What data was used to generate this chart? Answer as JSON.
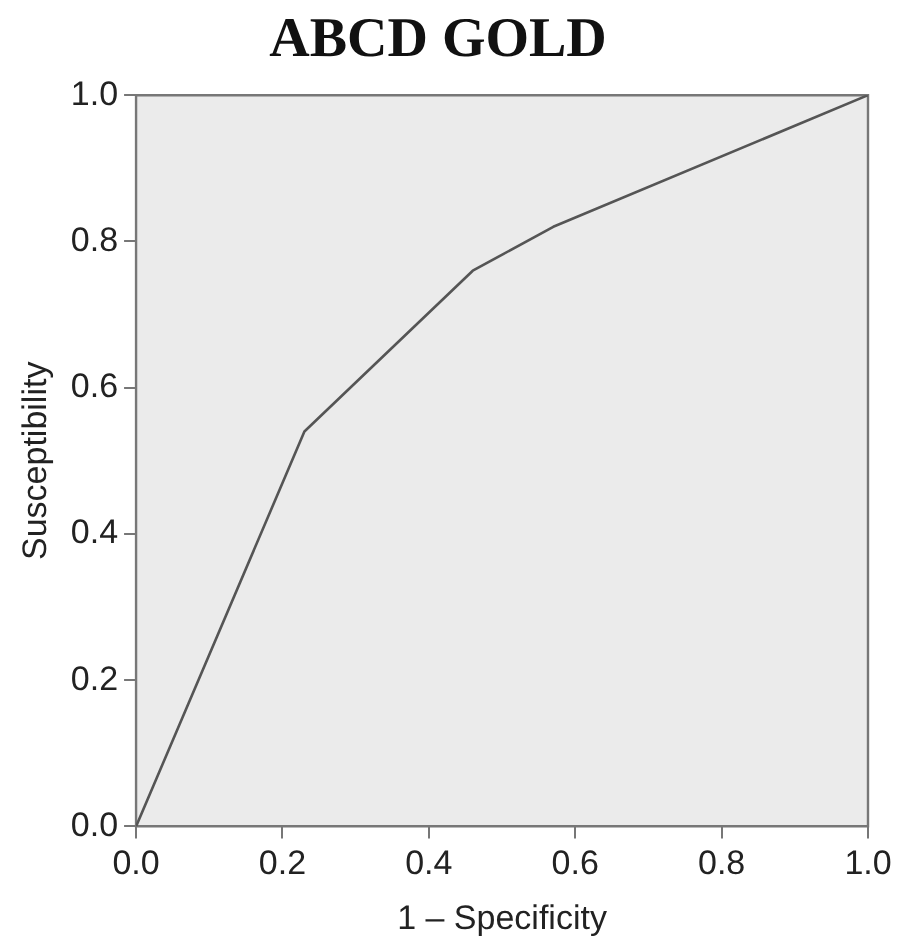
{
  "chart_data": {
    "type": "line",
    "title": "ABCD GOLD",
    "xlabel": "1 – Specificity",
    "ylabel": "Susceptibility",
    "x": [
      0,
      0.23,
      0.46,
      0.57,
      1
    ],
    "series": [
      {
        "color": "#555555",
        "values": [
          0,
          0.54,
          0.76,
          0.82,
          1
        ]
      }
    ],
    "xlim": [
      0,
      1
    ],
    "ylim": [
      0,
      1
    ],
    "xticks": [
      {
        "value": 0,
        "label": "0.0"
      },
      0.2,
      0.4,
      0.6,
      0.8,
      {
        "value": 1,
        "label": "1.0"
      }
    ],
    "yticks": [
      {
        "value": 0,
        "label": "0.0"
      },
      0.2,
      0.4,
      0.6,
      0.8,
      {
        "value": 1,
        "label": "1.0"
      }
    ],
    "grid": false,
    "legend": false,
    "marker": "none",
    "line_style": "solid"
  }
}
